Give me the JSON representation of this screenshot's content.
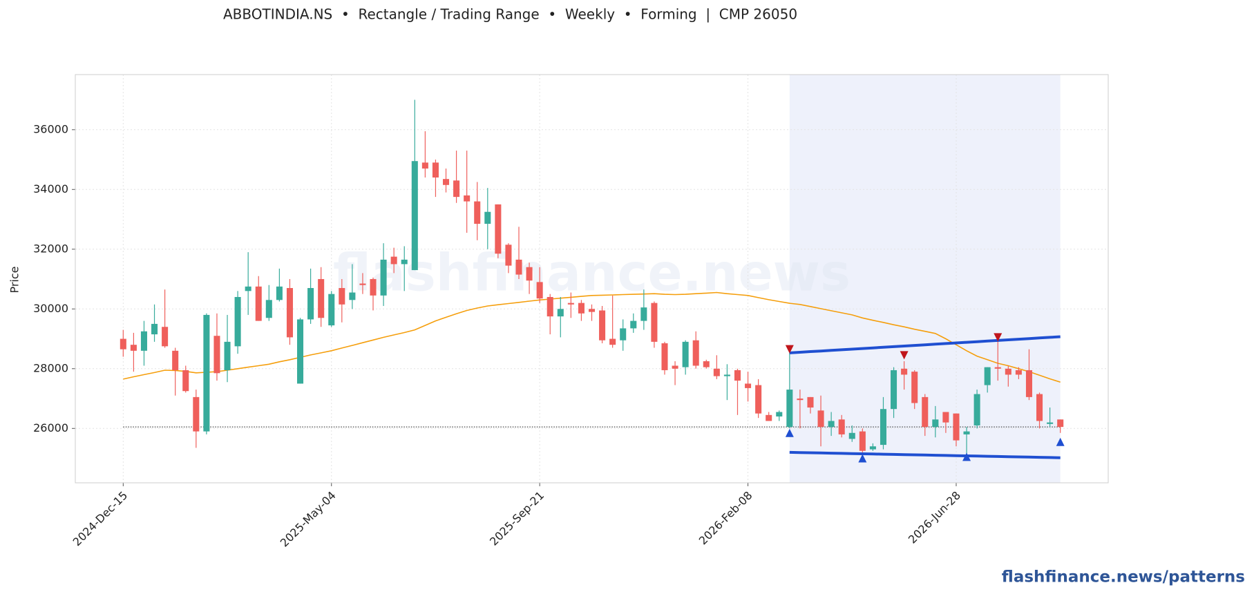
{
  "chart_data": {
    "type": "candlestick",
    "title": "ABBOTINDIA.NS  •  Rectangle / Trading Range  •  Weekly  •  Forming  |  CMP 26050",
    "y_label": "Price",
    "watermark": "flashfinance.news",
    "footer": "flashfinance.news/patterns",
    "categories": [
      "2024-Dec-15",
      null,
      null,
      null,
      null,
      null,
      null,
      null,
      null,
      null,
      null,
      null,
      null,
      null,
      null,
      null,
      null,
      null,
      null,
      null,
      "2025-May-04",
      null,
      null,
      null,
      null,
      null,
      null,
      null,
      null,
      null,
      null,
      null,
      null,
      null,
      null,
      null,
      null,
      null,
      null,
      null,
      "2025-Sep-21",
      null,
      null,
      null,
      null,
      null,
      null,
      null,
      null,
      null,
      null,
      null,
      null,
      null,
      null,
      null,
      null,
      null,
      null,
      null,
      "2026-Feb-08",
      null,
      null,
      null,
      null,
      null,
      null,
      null,
      null,
      null,
      null,
      null,
      null,
      null,
      null,
      null,
      null,
      null,
      null,
      null,
      "2026-Jun-28",
      null,
      null,
      null,
      null,
      null,
      null,
      null,
      null,
      null,
      null
    ],
    "open": [
      29000,
      28800,
      28600,
      29150,
      29400,
      28600,
      27950,
      27050,
      25900,
      29100,
      27950,
      28750,
      30600,
      30750,
      29700,
      30300,
      30700,
      27500,
      29650,
      31000,
      29450,
      30700,
      30300,
      30850,
      31000,
      30450,
      31750,
      31500,
      31300,
      34900,
      34900,
      34350,
      34300,
      33800,
      33600,
      32850,
      33500,
      32150,
      31650,
      31400,
      30900,
      30400,
      29750,
      30200,
      30200,
      30000,
      29950,
      29000,
      28950,
      29350,
      29600,
      30200,
      28850,
      28100,
      28050,
      28950,
      28250,
      28000,
      27750,
      27950,
      27500,
      27450,
      26450,
      26400,
      26050,
      27000,
      27050,
      26600,
      26050,
      26300,
      25650,
      25900,
      25300,
      25450,
      26650,
      28000,
      27900,
      27050,
      26050,
      26550,
      26500,
      25800,
      26100,
      27450,
      28050,
      28000,
      27950,
      27950,
      27150,
      26150,
      26300
    ],
    "high": [
      29300,
      29200,
      29600,
      30150,
      30650,
      28700,
      28100,
      27300,
      29850,
      29850,
      29800,
      30600,
      31900,
      31100,
      30800,
      31350,
      31000,
      29700,
      31350,
      31400,
      30600,
      31000,
      31500,
      31200,
      31050,
      32200,
      32050,
      32100,
      37000,
      35950,
      35000,
      34700,
      35300,
      35300,
      34250,
      34050,
      33500,
      32200,
      32750,
      31550,
      31400,
      30500,
      30400,
      30550,
      30300,
      30150,
      30100,
      30450,
      29650,
      29850,
      30650,
      30250,
      28900,
      28250,
      28950,
      29250,
      28300,
      28450,
      28150,
      28000,
      27900,
      27650,
      26550,
      26600,
      28600,
      27300,
      27050,
      27100,
      26550,
      26450,
      26100,
      26000,
      25500,
      27050,
      28050,
      28250,
      27950,
      27150,
      26750,
      26550,
      26500,
      26050,
      27300,
      28050,
      28950,
      28100,
      28050,
      28650,
      27200,
      26700,
      26300
    ],
    "low": [
      28400,
      27900,
      28100,
      28900,
      28700,
      27100,
      27200,
      25350,
      25800,
      27600,
      27550,
      28500,
      29800,
      29600,
      29600,
      30250,
      28800,
      27500,
      29500,
      29400,
      29400,
      29550,
      30000,
      30500,
      29950,
      30100,
      31200,
      30600,
      31300,
      34400,
      33750,
      33900,
      33550,
      32550,
      32300,
      32000,
      31700,
      31200,
      31000,
      30500,
      30200,
      29150,
      29050,
      29700,
      29600,
      29600,
      28850,
      28700,
      28600,
      29200,
      29300,
      28700,
      27800,
      27450,
      27800,
      28000,
      28000,
      27650,
      26950,
      26450,
      26900,
      26350,
      26250,
      26250,
      26000,
      26000,
      26500,
      25400,
      25750,
      25700,
      25550,
      25200,
      25250,
      25300,
      26350,
      27300,
      26650,
      25750,
      25700,
      25850,
      25400,
      25100,
      26000,
      27200,
      27600,
      27400,
      27650,
      26950,
      26000,
      26050,
      25850
    ],
    "close": [
      28650,
      28600,
      29250,
      29500,
      28750,
      27950,
      27250,
      25900,
      29800,
      27850,
      28900,
      30400,
      30750,
      29600,
      30300,
      30750,
      29050,
      29650,
      30700,
      29700,
      30500,
      30150,
      30550,
      30800,
      30450,
      31650,
      31500,
      31650,
      34950,
      34700,
      34400,
      34150,
      33750,
      33600,
      32850,
      33250,
      31850,
      31450,
      31150,
      30950,
      30350,
      29750,
      30000,
      30150,
      29850,
      29900,
      28950,
      28800,
      29350,
      29600,
      30050,
      28900,
      27950,
      28000,
      28900,
      28100,
      28050,
      27750,
      27800,
      27600,
      27350,
      26500,
      26250,
      26550,
      27300,
      26950,
      26700,
      26050,
      26250,
      25800,
      25850,
      25250,
      25400,
      26650,
      27950,
      27800,
      26850,
      26050,
      26300,
      26200,
      25600,
      25900,
      27150,
      28050,
      28000,
      27800,
      27800,
      27050,
      26250,
      26200,
      26050
    ],
    "up_color": "#37ab9b",
    "down_color": "#ef5f5b",
    "moving_average": {
      "color": "#f59e0b",
      "values": [
        27650,
        27730,
        27800,
        27870,
        27950,
        27940,
        27910,
        27860,
        27880,
        27900,
        27950,
        28000,
        28050,
        28100,
        28150,
        28230,
        28300,
        28380,
        28460,
        28530,
        28600,
        28690,
        28780,
        28870,
        28960,
        29050,
        29130,
        29210,
        29300,
        29450,
        29600,
        29720,
        29840,
        29950,
        30030,
        30100,
        30140,
        30180,
        30220,
        30260,
        30300,
        30330,
        30360,
        30390,
        30420,
        30450,
        30460,
        30470,
        30480,
        30490,
        30500,
        30510,
        30490,
        30480,
        30490,
        30510,
        30530,
        30550,
        30510,
        30480,
        30450,
        30380,
        30310,
        30250,
        30190,
        30150,
        30080,
        30010,
        29940,
        29870,
        29800,
        29700,
        29620,
        29550,
        29470,
        29400,
        29320,
        29250,
        29180,
        29000,
        28800,
        28600,
        28420,
        28300,
        28180,
        28100,
        28000,
        27900,
        27780,
        27660,
        27550
      ]
    },
    "reference_line": 26050,
    "pattern_color": "#1f4fd1",
    "band_color": "#eef1fb",
    "resistance": [
      null,
      null,
      null,
      null,
      null,
      null,
      null,
      null,
      null,
      null,
      null,
      null,
      null,
      null,
      null,
      null,
      null,
      null,
      null,
      null,
      null,
      null,
      null,
      null,
      null,
      null,
      null,
      null,
      null,
      null,
      null,
      null,
      null,
      null,
      null,
      null,
      null,
      null,
      null,
      null,
      null,
      null,
      null,
      null,
      null,
      null,
      null,
      null,
      null,
      null,
      null,
      null,
      null,
      null,
      null,
      null,
      null,
      null,
      null,
      null,
      null,
      null,
      null,
      null,
      28530,
      28551,
      28572,
      28592,
      28613,
      28634,
      28655,
      28675,
      28696,
      28717,
      28738,
      28758,
      28779,
      28800,
      28821,
      28842,
      28862,
      28883,
      28904,
      28925,
      28945,
      28966,
      28987,
      29008,
      29028,
      29049,
      29070
    ],
    "support": [
      null,
      null,
      null,
      null,
      null,
      null,
      null,
      null,
      null,
      null,
      null,
      null,
      null,
      null,
      null,
      null,
      null,
      null,
      null,
      null,
      null,
      null,
      null,
      null,
      null,
      null,
      null,
      null,
      null,
      null,
      null,
      null,
      null,
      null,
      null,
      null,
      null,
      null,
      null,
      null,
      null,
      null,
      null,
      null,
      null,
      null,
      null,
      null,
      null,
      null,
      null,
      null,
      null,
      null,
      null,
      null,
      null,
      null,
      null,
      null,
      null,
      null,
      null,
      null,
      25200,
      25193,
      25186,
      25179,
      25172,
      25165,
      25158,
      25152,
      25145,
      25138,
      25131,
      25124,
      25117,
      25110,
      25103,
      25096,
      25089,
      25082,
      25075,
      25069,
      25062,
      25055,
      25048,
      25041,
      25034,
      25027,
      25020
    ],
    "peaks": {
      "color": "#c0151b",
      "values": [
        null,
        null,
        null,
        null,
        null,
        null,
        null,
        null,
        null,
        null,
        null,
        null,
        null,
        null,
        null,
        null,
        null,
        null,
        null,
        null,
        null,
        null,
        null,
        null,
        null,
        null,
        null,
        null,
        null,
        null,
        null,
        null,
        null,
        null,
        null,
        null,
        null,
        null,
        null,
        null,
        null,
        null,
        null,
        null,
        null,
        null,
        null,
        null,
        null,
        null,
        null,
        null,
        null,
        null,
        null,
        null,
        null,
        null,
        null,
        null,
        null,
        null,
        null,
        null,
        28650,
        null,
        null,
        null,
        null,
        null,
        null,
        null,
        null,
        null,
        null,
        28450,
        null,
        null,
        null,
        null,
        null,
        null,
        null,
        null,
        29050,
        null,
        null,
        null,
        null,
        null,
        null
      ]
    },
    "troughs": {
      "color": "#1f4fd1",
      "values": [
        null,
        null,
        null,
        null,
        null,
        null,
        null,
        null,
        null,
        null,
        null,
        null,
        null,
        null,
        null,
        null,
        null,
        null,
        null,
        null,
        null,
        null,
        null,
        null,
        null,
        null,
        null,
        null,
        null,
        null,
        null,
        null,
        null,
        null,
        null,
        null,
        null,
        null,
        null,
        null,
        null,
        null,
        null,
        null,
        null,
        null,
        null,
        null,
        null,
        null,
        null,
        null,
        null,
        null,
        null,
        null,
        null,
        null,
        null,
        null,
        null,
        null,
        null,
        null,
        25850,
        null,
        null,
        null,
        null,
        null,
        null,
        25000,
        null,
        null,
        null,
        null,
        null,
        null,
        null,
        null,
        null,
        25050,
        null,
        null,
        null,
        null,
        null,
        null,
        null,
        null,
        25550
      ]
    },
    "ylim": [
      24180,
      37845
    ],
    "yticks": [
      26000,
      28000,
      30000,
      32000,
      34000,
      36000
    ],
    "grid": true
  }
}
